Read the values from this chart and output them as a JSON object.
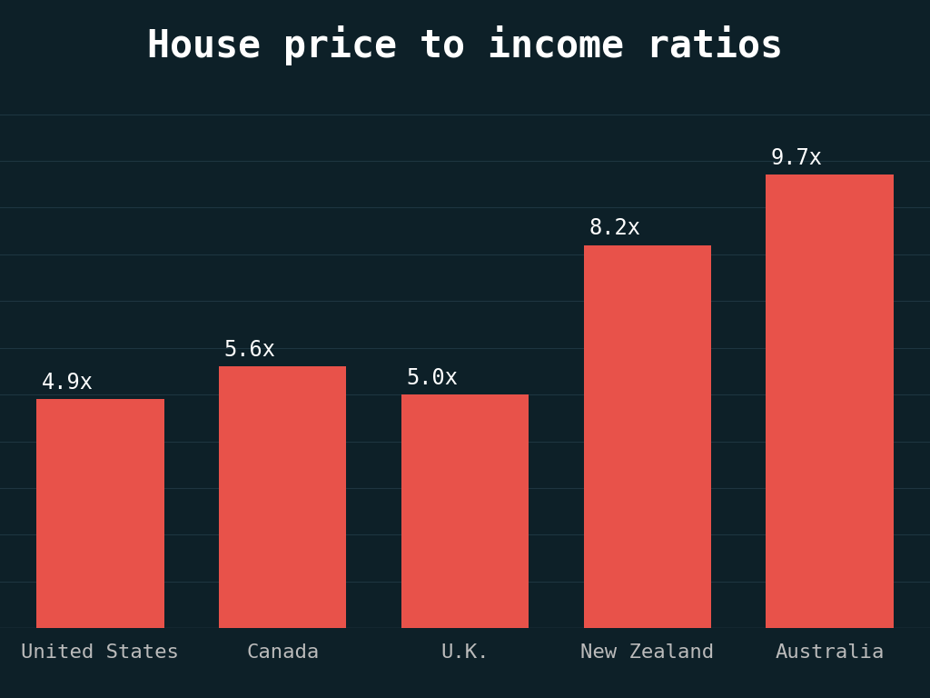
{
  "title": "House price to income ratios",
  "categories": [
    "United States",
    "Canada",
    "U.K.",
    "New Zealand",
    "Australia"
  ],
  "values": [
    4.9,
    5.6,
    5.0,
    8.2,
    9.7
  ],
  "labels": [
    "4.9x",
    "5.6x",
    "5.0x",
    "8.2x",
    "9.7x"
  ],
  "bar_color": "#e8524a",
  "background_color": "#0d2028",
  "title_bg_color": "#000000",
  "grid_color": "#1e3540",
  "text_color": "#ffffff",
  "tick_color": "#bbbbbb",
  "ylim": [
    0,
    11.5
  ],
  "title_fontsize": 30,
  "label_fontsize": 17,
  "tick_fontsize": 16,
  "bar_width": 0.7,
  "grid_values": [
    1,
    2,
    3,
    4,
    5,
    6,
    7,
    8,
    9,
    10,
    11
  ]
}
